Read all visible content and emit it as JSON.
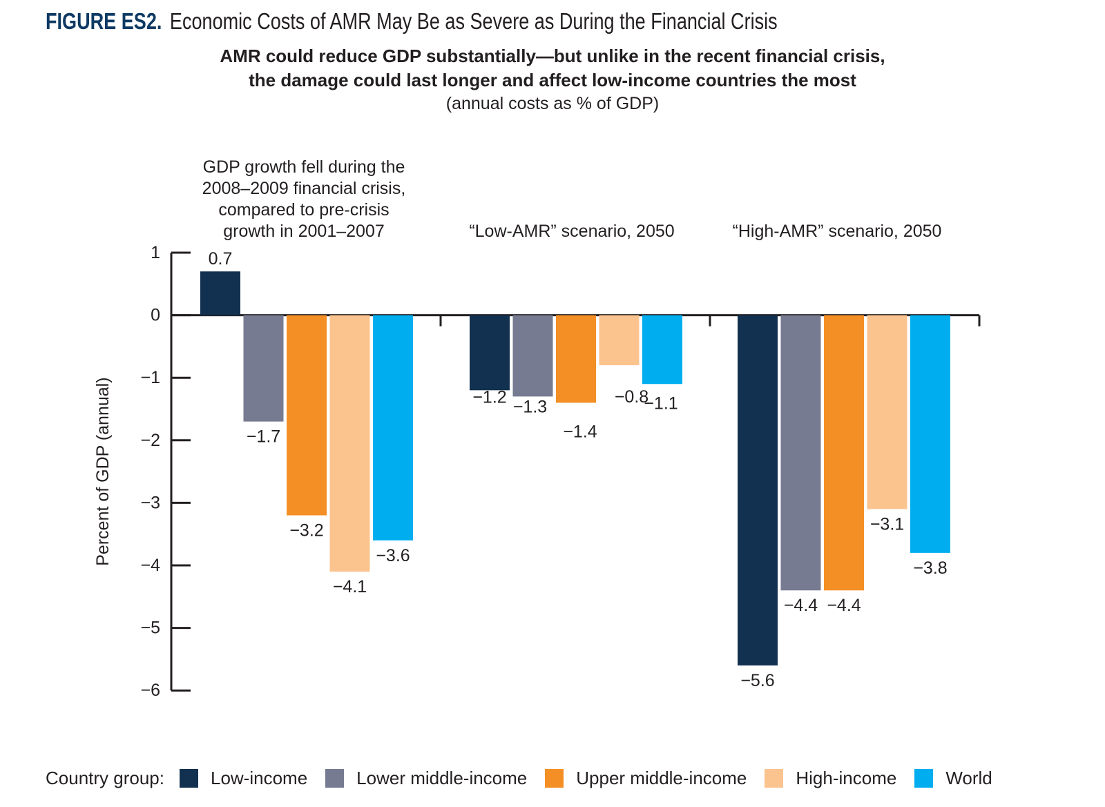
{
  "figure": {
    "label": "FIGURE ES2.",
    "title": "Economic Costs of AMR May Be as Severe as During the Financial Crisis",
    "subtitle_line1": "AMR could reduce GDP substantially—but unlike in the recent financial crisis,",
    "subtitle_line2": "the damage could last longer and affect low-income countries the most",
    "note": "(annual costs as % of GDP)"
  },
  "legend": {
    "title": "Country group:"
  },
  "colors": {
    "low_income": "#12304f",
    "lower_middle_income": "#777b91",
    "upper_middle_income": "#f48f26",
    "high_income": "#fbc48f",
    "world": "#00aeef",
    "axis": "#231f20"
  },
  "chart_data": {
    "type": "bar",
    "ylabel": "Percent of GDP (annual)",
    "ylim": [
      -6,
      1
    ],
    "yticks": [
      "1",
      "0",
      "−1",
      "−2",
      "−3",
      "−4",
      "−5",
      "−6"
    ],
    "grid": false,
    "legend_position": "bottom",
    "categories": [
      [
        "GDP growth fell during the",
        "2008–2009 financial crisis,",
        "compared to pre-crisis",
        "growth in 2001–2007"
      ],
      [
        "“Low-AMR” scenario, 2050"
      ],
      [
        "“High-AMR” scenario, 2050"
      ]
    ],
    "series": [
      {
        "name": "Low-income",
        "color": "#12304f",
        "values": [
          0.7,
          -1.2,
          -5.6
        ],
        "labels": [
          "0.7",
          "−1.2",
          "−5.6"
        ]
      },
      {
        "name": "Lower middle-income",
        "color": "#777b91",
        "values": [
          -1.7,
          -1.3,
          -4.4
        ],
        "labels": [
          "−1.7",
          "−1.3",
          "−4.4"
        ]
      },
      {
        "name": "Upper middle-income",
        "color": "#f48f26",
        "values": [
          -3.2,
          -1.4,
          -4.4
        ],
        "labels": [
          "−3.2",
          "−1.4",
          "−4.4"
        ]
      },
      {
        "name": "High-income",
        "color": "#fbc48f",
        "values": [
          -4.1,
          -0.8,
          -3.1
        ],
        "labels": [
          "−4.1",
          "−0.8",
          "−3.1"
        ]
      },
      {
        "name": "World",
        "color": "#00aeef",
        "values": [
          -3.6,
          -1.1,
          -3.8
        ],
        "labels": [
          "−3.6",
          "−1.1",
          "−3.8"
        ]
      }
    ]
  }
}
